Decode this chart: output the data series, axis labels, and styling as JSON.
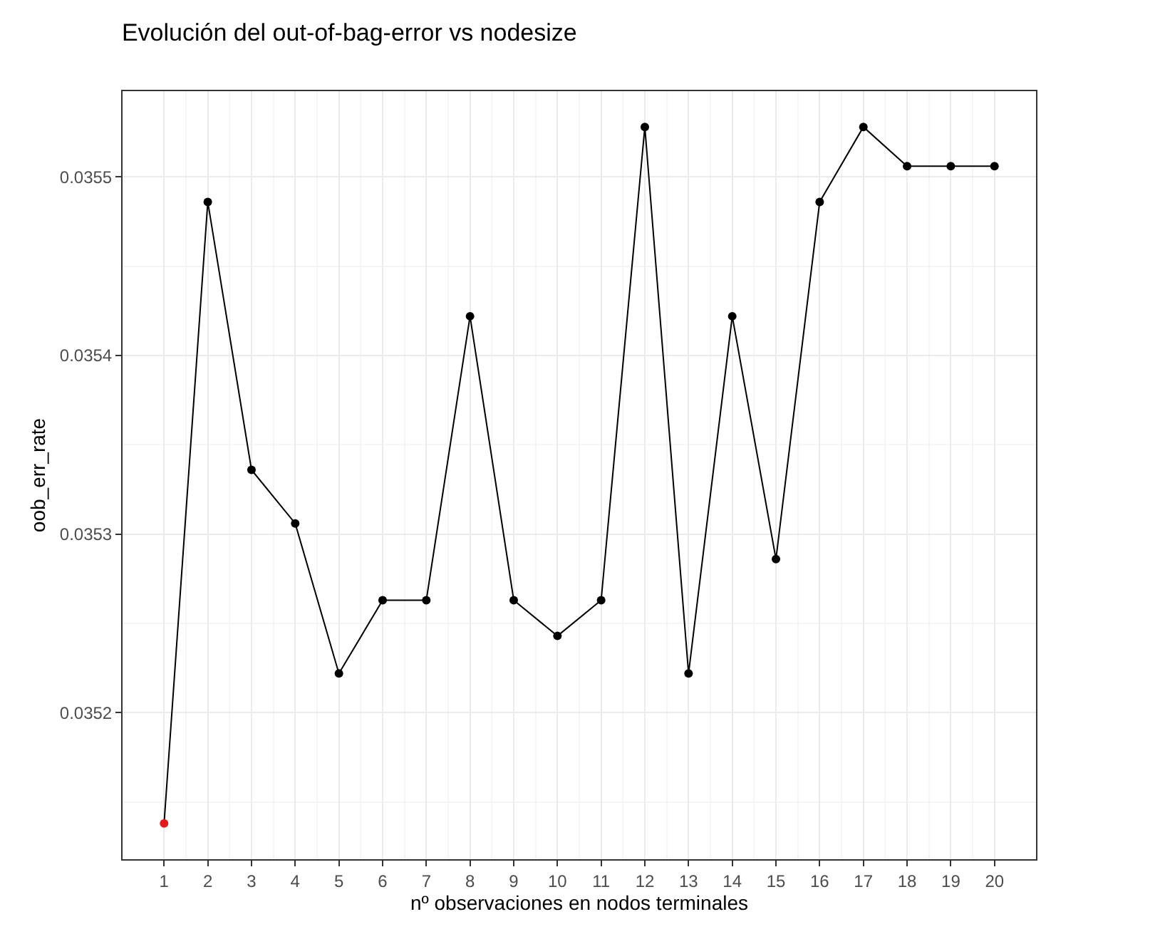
{
  "chart_data": {
    "type": "line",
    "title": "Evolución del out-of-bag-error vs nodesize",
    "xlabel": "nº observaciones en nodos terminales",
    "ylabel": "oob_err_rate",
    "x": [
      1,
      2,
      3,
      4,
      5,
      6,
      7,
      8,
      9,
      10,
      11,
      12,
      13,
      14,
      15,
      16,
      17,
      18,
      19,
      20
    ],
    "series": [
      {
        "color": "#000000",
        "colors": [
          "#e41a1c",
          "#000000",
          "#000000",
          "#000000",
          "#000000",
          "#000000",
          "#000000",
          "#000000",
          "#000000",
          "#000000",
          "#000000",
          "#000000",
          "#000000",
          "#000000",
          "#000000",
          "#000000",
          "#000000",
          "#000000",
          "#000000",
          "#000000"
        ],
        "values": [
          0.035138,
          0.035486,
          0.035336,
          0.035306,
          0.035222,
          0.035263,
          0.035263,
          0.035422,
          0.035263,
          0.035243,
          0.035263,
          0.035528,
          0.035222,
          0.035422,
          0.035286,
          0.035486,
          0.035528,
          0.035506,
          0.035506,
          0.035506
        ]
      }
    ],
    "xlim": [
      0.05,
      20.95
    ],
    "xticks": [
      1,
      2,
      3,
      4,
      5,
      6,
      7,
      8,
      9,
      10,
      11,
      12,
      13,
      14,
      15,
      16,
      17,
      18,
      19,
      20
    ],
    "ylim": [
      0.035118,
      0.035548
    ],
    "yticks": [
      0.0352,
      0.0353,
      0.0354,
      0.0355
    ],
    "grid": true,
    "marker": "circle",
    "line_style": "solid"
  }
}
